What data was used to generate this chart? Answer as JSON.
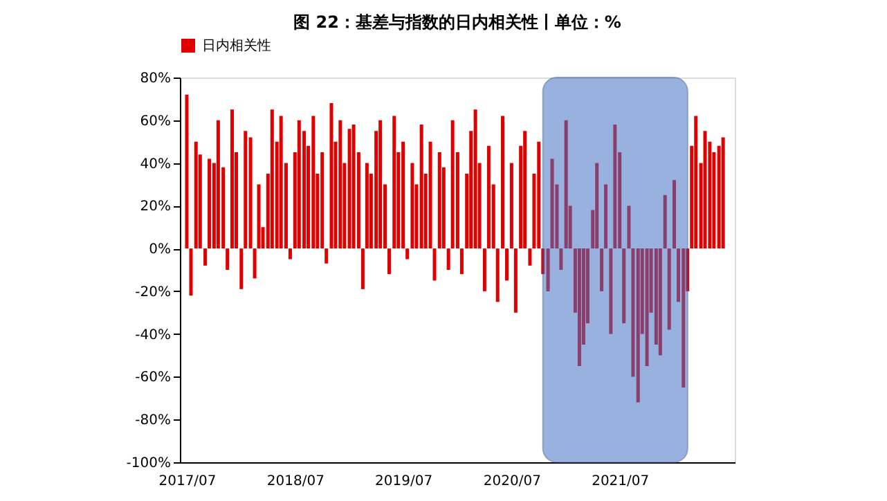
{
  "chart_data": {
    "type": "bar",
    "title": "图 22：基差与指数的日内相关性丨单位：%",
    "x": [
      "2017-07-01",
      "2017-07-15",
      "2017-08-01",
      "2017-08-15",
      "2017-09-01",
      "2017-09-15",
      "2017-10-01",
      "2017-10-15",
      "2017-11-01",
      "2017-11-15",
      "2017-12-01",
      "2017-12-15",
      "2018-01-01",
      "2018-01-15",
      "2018-02-01",
      "2018-02-15",
      "2018-03-01",
      "2018-03-15",
      "2018-04-01",
      "2018-04-15",
      "2018-05-01",
      "2018-05-15",
      "2018-06-01",
      "2018-06-15",
      "2018-07-01",
      "2018-07-15",
      "2018-08-01",
      "2018-08-15",
      "2018-09-01",
      "2018-09-15",
      "2018-10-01",
      "2018-10-15",
      "2018-11-01",
      "2018-11-15",
      "2018-12-01",
      "2018-12-15",
      "2019-01-01",
      "2019-01-15",
      "2019-02-01",
      "2019-02-15",
      "2019-03-01",
      "2019-03-15",
      "2019-04-01",
      "2019-04-15",
      "2019-05-01",
      "2019-05-15",
      "2019-06-01",
      "2019-06-15",
      "2019-07-01",
      "2019-07-15",
      "2019-08-01",
      "2019-08-15",
      "2019-09-01",
      "2019-09-15",
      "2019-10-01",
      "2019-10-15",
      "2019-11-01",
      "2019-11-15",
      "2019-12-01",
      "2019-12-15",
      "2020-01-01",
      "2020-01-15",
      "2020-02-01",
      "2020-02-15",
      "2020-03-01",
      "2020-03-15",
      "2020-04-01",
      "2020-04-15",
      "2020-05-01",
      "2020-05-15",
      "2020-06-01",
      "2020-06-15",
      "2020-07-01",
      "2020-07-15",
      "2020-08-01",
      "2020-08-15",
      "2020-09-01",
      "2020-09-15",
      "2020-10-01",
      "2020-10-15",
      "2020-11-01",
      "2020-11-15",
      "2020-12-01",
      "2020-12-15",
      "2021-01-01",
      "2021-01-15",
      "2021-02-01",
      "2021-02-15",
      "2021-03-01",
      "2021-03-15",
      "2021-04-01",
      "2021-04-15",
      "2021-05-01",
      "2021-05-15",
      "2021-06-01",
      "2021-06-15",
      "2021-07-01",
      "2021-07-15",
      "2021-08-01",
      "2021-08-15",
      "2021-09-01",
      "2021-09-15",
      "2021-10-01",
      "2021-10-15",
      "2021-11-01",
      "2021-11-15",
      "2021-12-01",
      "2021-12-15",
      "2022-01-01",
      "2022-01-15",
      "2022-02-01",
      "2022-02-15",
      "2022-03-01",
      "2022-03-15",
      "2022-04-01",
      "2022-04-15",
      "2022-05-01",
      "2022-05-15",
      "2022-06-01",
      "2022-06-15"
    ],
    "series": [
      {
        "name": "日内相关性",
        "color": "#e00000",
        "values": [
          72,
          -22,
          50,
          44,
          -8,
          42,
          40,
          60,
          38,
          -10,
          65,
          45,
          -19,
          55,
          52,
          -14,
          30,
          10,
          35,
          65,
          50,
          62,
          40,
          -5,
          45,
          60,
          55,
          48,
          62,
          35,
          45,
          -7,
          68,
          50,
          60,
          40,
          56,
          58,
          45,
          -19,
          40,
          35,
          55,
          60,
          30,
          -12,
          62,
          45,
          50,
          -5,
          40,
          30,
          58,
          35,
          50,
          -15,
          45,
          38,
          -10,
          60,
          45,
          -12,
          35,
          55,
          65,
          40,
          -20,
          48,
          30,
          -25,
          62,
          -15,
          40,
          -30,
          48,
          55,
          -8,
          35,
          50,
          -12,
          -20,
          42,
          30,
          -10,
          60,
          20,
          -30,
          -55,
          -45,
          -35,
          18,
          40,
          -20,
          30,
          -40,
          58,
          45,
          -35,
          20,
          -60,
          -72,
          -40,
          -55,
          -30,
          -45,
          -50,
          25,
          -38,
          32,
          -25,
          -65,
          -20,
          48,
          62,
          40,
          55,
          50,
          45,
          48,
          52
        ]
      }
    ],
    "xlim": [
      "2017-07-01",
      "2022-07-01"
    ],
    "xticks": [
      {
        "value": "2017-07-01",
        "label": "2017/07"
      },
      {
        "value": "2018-07-01",
        "label": "2018/07"
      },
      {
        "value": "2019-07-01",
        "label": "2019/07"
      },
      {
        "value": "2020-07-01",
        "label": "2020/07"
      },
      {
        "value": "2021-07-01",
        "label": "2021/07"
      }
    ],
    "ylim": [
      -100,
      80
    ],
    "yticks": [
      {
        "value": -100,
        "label": "-100%"
      },
      {
        "value": -80,
        "label": "-80%"
      },
      {
        "value": -60,
        "label": "-60%"
      },
      {
        "value": -40,
        "label": "-40%"
      },
      {
        "value": -20,
        "label": "-20%"
      },
      {
        "value": 0,
        "label": "0%"
      },
      {
        "value": 20,
        "label": "20%"
      },
      {
        "value": 40,
        "label": "40%"
      },
      {
        "value": 60,
        "label": "60%"
      },
      {
        "value": 80,
        "label": "80%"
      }
    ],
    "bands": [
      {
        "axis": "x",
        "from": "2020-10-15",
        "to": "2022-02-15",
        "color": "#4472c4"
      }
    ],
    "legend": "top",
    "grid": false
  }
}
